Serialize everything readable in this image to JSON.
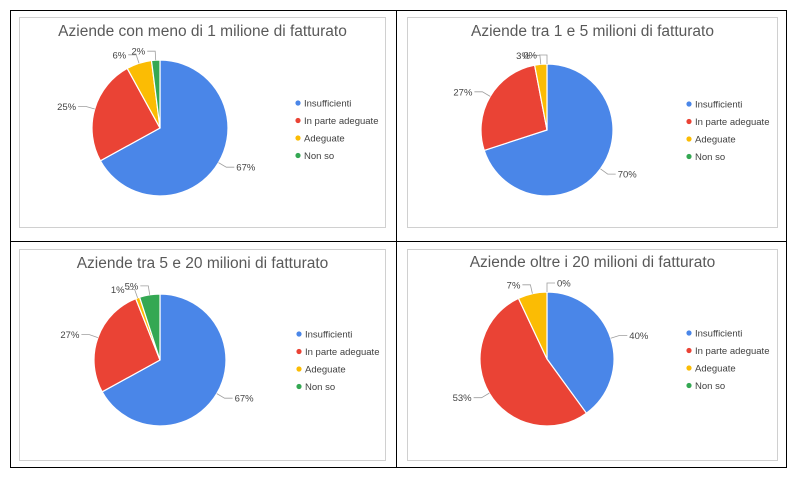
{
  "colors": {
    "Insufficienti": "#4a86e8",
    "In parte adeguate": "#ea4335",
    "Adeguate": "#fbbc04",
    "Non so": "#34a853"
  },
  "chart_data": [
    {
      "type": "pie",
      "title": "Aziende con meno di 1 milione di fatturato",
      "categories": [
        "Insufficienti",
        "In parte adeguate",
        "Adeguate",
        "Non so"
      ],
      "values": [
        67,
        25,
        6,
        2
      ],
      "labels": [
        "67%",
        "25%",
        "6%",
        "2%"
      ],
      "legend": "right"
    },
    {
      "type": "pie",
      "title": "Aziende tra 1 e 5 milioni di fatturato",
      "categories": [
        "Insufficienti",
        "In parte adeguate",
        "Adeguate",
        "Non so"
      ],
      "values": [
        70,
        27,
        3,
        0
      ],
      "labels": [
        "70%",
        "27%",
        "3%",
        "0%"
      ],
      "legend": "right"
    },
    {
      "type": "pie",
      "title": "Aziende tra 5 e 20 milioni di fatturato",
      "categories": [
        "Insufficienti",
        "In parte adeguate",
        "Adeguate",
        "Non so"
      ],
      "values": [
        67,
        27,
        1,
        5
      ],
      "labels": [
        "67%",
        "27%",
        "1%",
        "5%"
      ],
      "legend": "right"
    },
    {
      "type": "pie",
      "title": "Aziende oltre i 20 milioni di fatturato",
      "categories": [
        "Insufficienti",
        "In parte adeguate",
        "Adeguate",
        "Non so"
      ],
      "values": [
        40,
        53,
        7,
        0
      ],
      "labels": [
        "40%",
        "53%",
        "7%",
        "0%"
      ],
      "legend": "right"
    }
  ]
}
